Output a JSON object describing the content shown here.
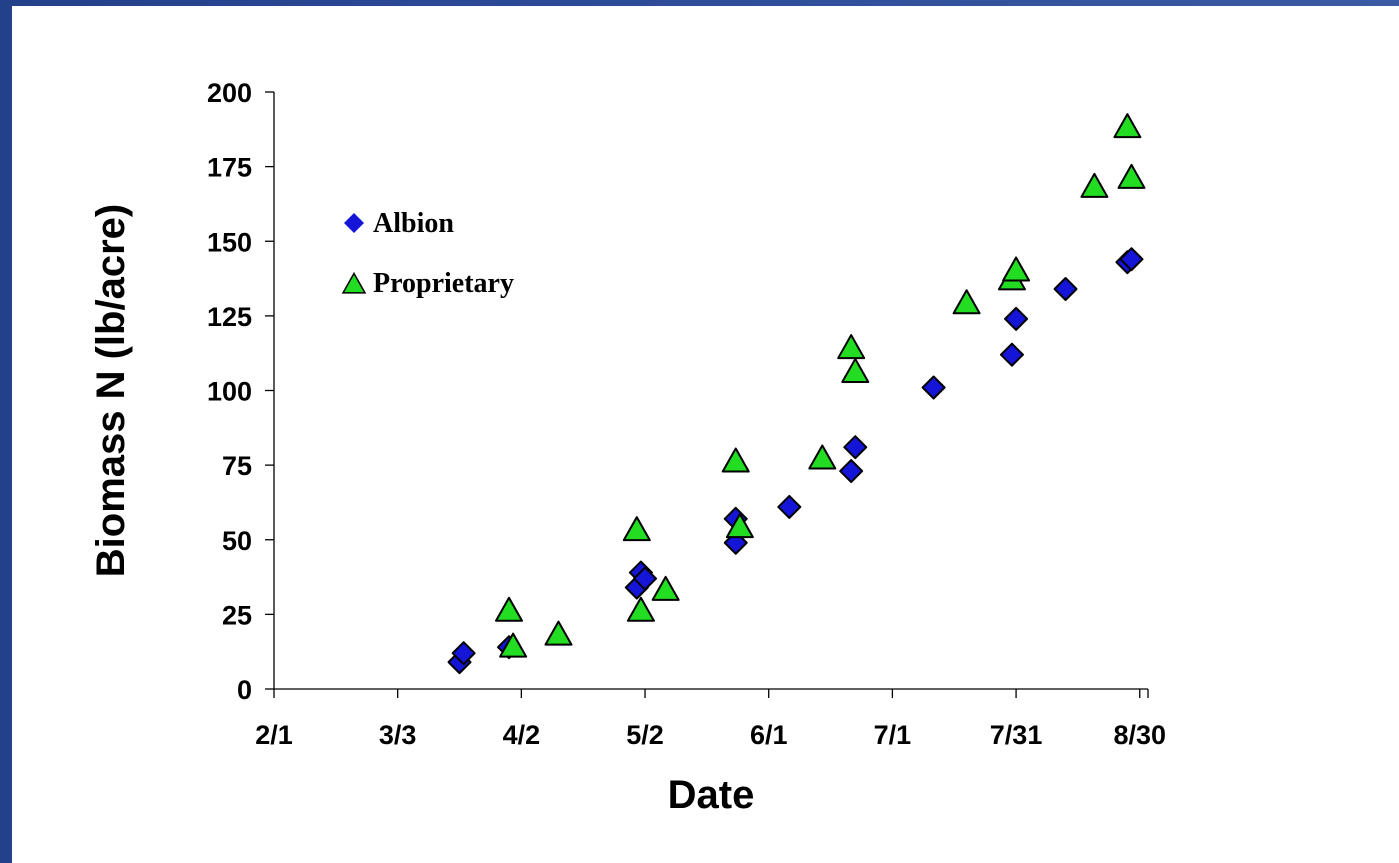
{
  "colors": {
    "frame": "#23408a",
    "background": "#ffffff",
    "albion": "#1515d8",
    "proprietary": "#22dd22",
    "marker_stroke": "#000000",
    "axis": "#000000"
  },
  "chart_data": {
    "type": "scatter",
    "title": "",
    "xlabel": "Date",
    "ylabel": "Biomass N (lb/acre)",
    "x_ticks": [
      "2/1",
      "3/3",
      "4/2",
      "5/2",
      "6/1",
      "7/1",
      "7/31",
      "8/30"
    ],
    "xlim": [
      "2/1",
      "9/1"
    ],
    "ylim": [
      0,
      200
    ],
    "y_ticks": [
      0,
      25,
      50,
      75,
      100,
      125,
      150,
      175,
      200
    ],
    "grid": false,
    "legend": "upper-left",
    "series": [
      {
        "name": "Albion",
        "marker": "diamond",
        "color": "#1515d8",
        "points": [
          {
            "x": "3/18",
            "y": 9
          },
          {
            "x": "3/19",
            "y": 12
          },
          {
            "x": "3/30",
            "y": 14
          },
          {
            "x": "4/30",
            "y": 34
          },
          {
            "x": "5/1",
            "y": 39
          },
          {
            "x": "5/2",
            "y": 37
          },
          {
            "x": "5/24",
            "y": 57
          },
          {
            "x": "5/24",
            "y": 49
          },
          {
            "x": "6/6",
            "y": 61
          },
          {
            "x": "6/21",
            "y": 73
          },
          {
            "x": "6/22",
            "y": 81
          },
          {
            "x": "7/11",
            "y": 101
          },
          {
            "x": "7/30",
            "y": 112
          },
          {
            "x": "7/31",
            "y": 124
          },
          {
            "x": "8/12",
            "y": 134
          },
          {
            "x": "8/27",
            "y": 143
          },
          {
            "x": "8/28",
            "y": 144
          }
        ]
      },
      {
        "name": "Proprietary",
        "marker": "triangle",
        "color": "#22dd22",
        "points": [
          {
            "x": "3/30",
            "y": 26
          },
          {
            "x": "3/31",
            "y": 14
          },
          {
            "x": "4/11",
            "y": 18
          },
          {
            "x": "4/30",
            "y": 53
          },
          {
            "x": "5/1",
            "y": 26
          },
          {
            "x": "5/7",
            "y": 33
          },
          {
            "x": "5/24",
            "y": 76
          },
          {
            "x": "5/25",
            "y": 54
          },
          {
            "x": "6/14",
            "y": 77
          },
          {
            "x": "6/21",
            "y": 114
          },
          {
            "x": "6/22",
            "y": 106
          },
          {
            "x": "7/19",
            "y": 129
          },
          {
            "x": "7/30",
            "y": 137
          },
          {
            "x": "7/31",
            "y": 140
          },
          {
            "x": "8/19",
            "y": 168
          },
          {
            "x": "8/27",
            "y": 188
          },
          {
            "x": "8/28",
            "y": 171
          }
        ]
      }
    ]
  }
}
